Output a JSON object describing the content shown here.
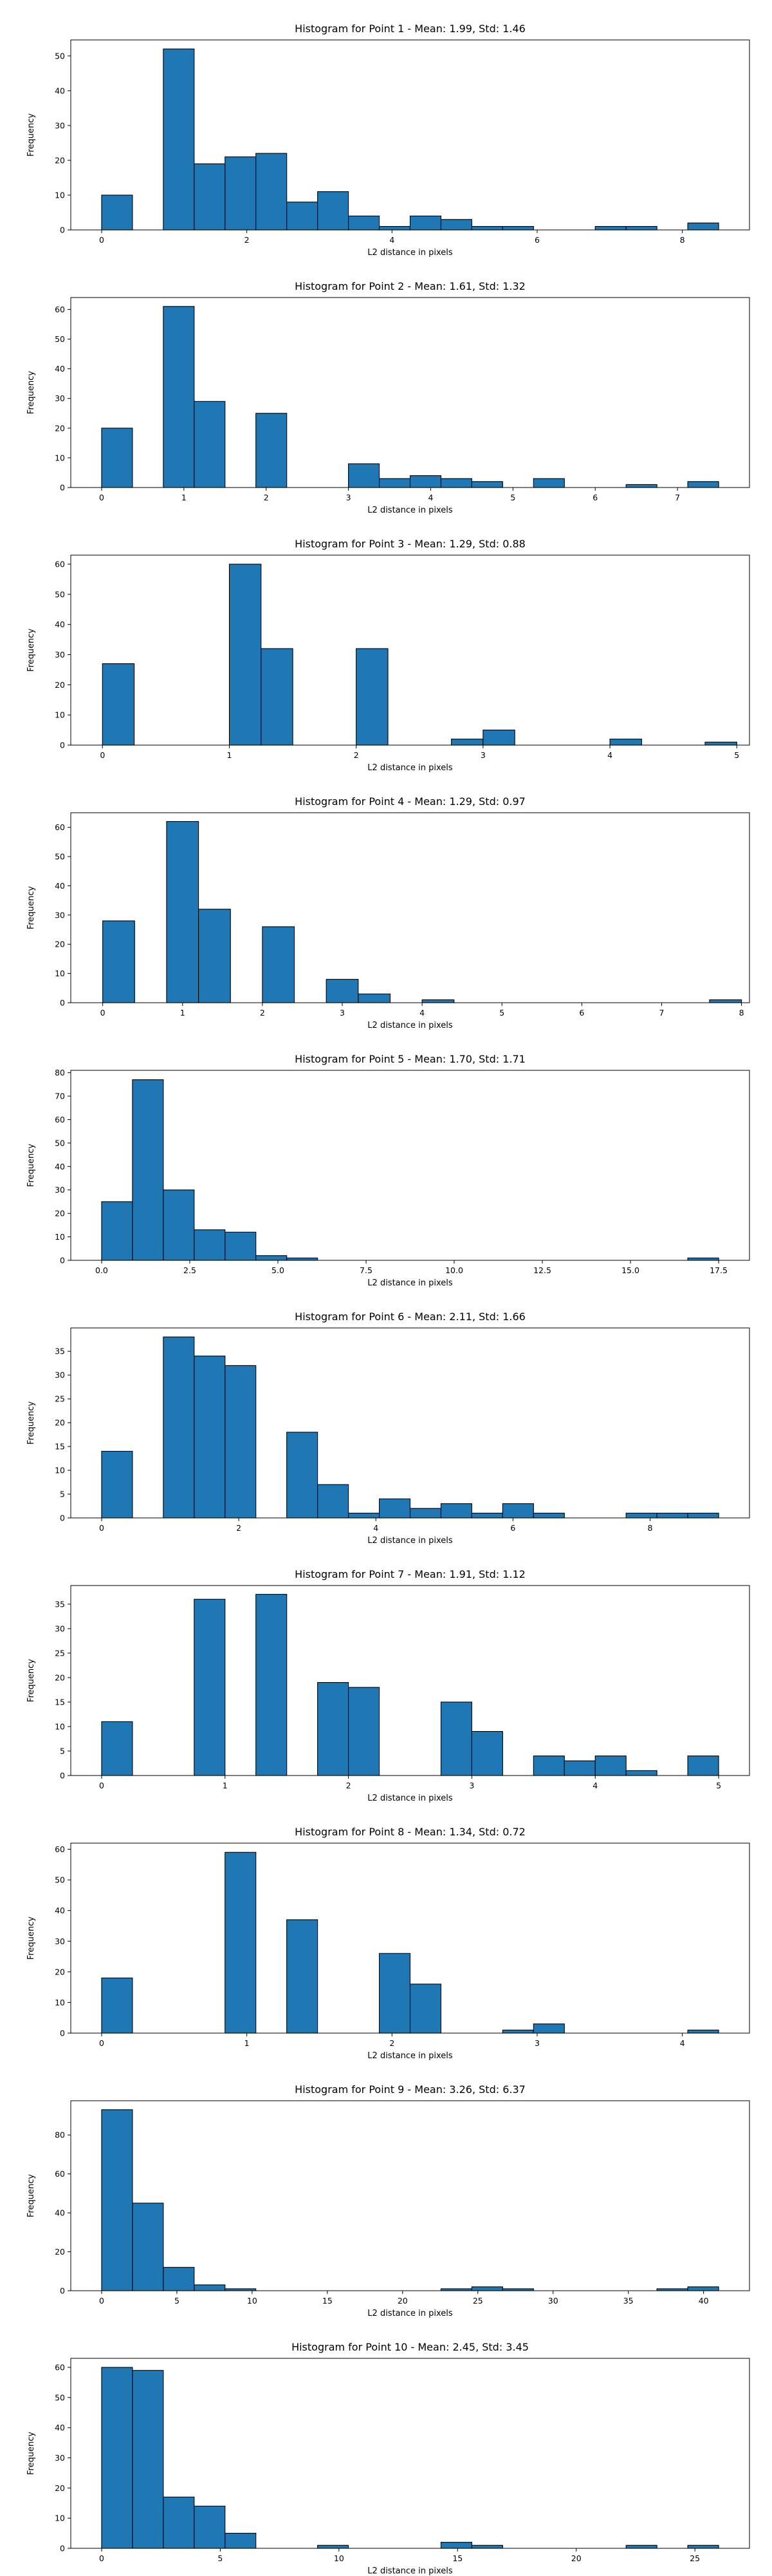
{
  "chart_data": [
    {
      "type": "bar",
      "title": "Histogram for Point 1 - Mean: 1.99, Std: 1.46",
      "xlabel": "L2 distance in pixels",
      "ylabel": "Frequency",
      "bin_edges": [
        0,
        0.425,
        0.85,
        1.275,
        1.7,
        2.125,
        2.55,
        2.975,
        3.4,
        3.825,
        4.25,
        4.675,
        5.1,
        5.525,
        5.95,
        6.375,
        6.8,
        7.225,
        7.65,
        8.075,
        8.5
      ],
      "counts": [
        10,
        0,
        52,
        19,
        21,
        22,
        8,
        11,
        4,
        1,
        4,
        3,
        1,
        1,
        0,
        0,
        1,
        1,
        0,
        2
      ],
      "xlim": [
        -0.425,
        8.925
      ],
      "ylim": [
        0,
        54.6
      ],
      "xticks": [
        0,
        2,
        4,
        6,
        8
      ],
      "yticks": [
        0,
        10,
        20,
        30,
        40,
        50
      ]
    },
    {
      "type": "bar",
      "title": "Histogram for Point 2 - Mean: 1.61, Std: 1.32",
      "xlabel": "L2 distance in pixels",
      "ylabel": "Frequency",
      "bin_edges": [
        0,
        0.375,
        0.75,
        1.125,
        1.5,
        1.875,
        2.25,
        2.625,
        3.0,
        3.375,
        3.75,
        4.125,
        4.5,
        4.875,
        5.25,
        5.625,
        6.0,
        6.375,
        6.75,
        7.125,
        7.5
      ],
      "counts": [
        20,
        0,
        61,
        29,
        0,
        25,
        0,
        0,
        8,
        3,
        4,
        3,
        2,
        0,
        3,
        0,
        0,
        1,
        0,
        2
      ],
      "xlim": [
        -0.375,
        7.875
      ],
      "ylim": [
        0,
        64
      ],
      "xticks": [
        0,
        1,
        2,
        3,
        4,
        5,
        6,
        7
      ],
      "yticks": [
        0,
        10,
        20,
        30,
        40,
        50,
        60
      ]
    },
    {
      "type": "bar",
      "title": "Histogram for Point 3 - Mean: 1.29, Std: 0.88",
      "xlabel": "L2 distance in pixels",
      "ylabel": "Frequency",
      "bin_edges": [
        0,
        0.25,
        0.5,
        0.75,
        1.0,
        1.25,
        1.5,
        1.75,
        2.0,
        2.25,
        2.5,
        2.75,
        3.0,
        3.25,
        3.5,
        3.75,
        4.0,
        4.25,
        4.5,
        4.75,
        5.0
      ],
      "counts": [
        27,
        0,
        0,
        0,
        60,
        32,
        0,
        0,
        32,
        0,
        0,
        2,
        5,
        0,
        0,
        0,
        2,
        0,
        0,
        1
      ],
      "xlim": [
        -0.25,
        5.1
      ],
      "ylim": [
        0,
        63
      ],
      "xticks": [
        0,
        1,
        2,
        3,
        4,
        5
      ],
      "yticks": [
        0,
        10,
        20,
        30,
        40,
        50,
        60
      ]
    },
    {
      "type": "bar",
      "title": "Histogram for Point 4 - Mean: 1.29, Std: 0.97",
      "xlabel": "L2 distance in pixels",
      "ylabel": "Frequency",
      "bin_edges": [
        0,
        0.4,
        0.8,
        1.2,
        1.6,
        2.0,
        2.4,
        2.8,
        3.2,
        3.6,
        4.0,
        4.4,
        4.8,
        5.2,
        5.6,
        6.0,
        6.4,
        6.8,
        7.2,
        7.6,
        8.0
      ],
      "counts": [
        28,
        0,
        62,
        32,
        0,
        26,
        0,
        8,
        3,
        0,
        1,
        0,
        0,
        0,
        0,
        0,
        0,
        0,
        0,
        1
      ],
      "xlim": [
        -0.4,
        8.1
      ],
      "ylim": [
        0,
        65
      ],
      "xticks": [
        0,
        1,
        2,
        3,
        4,
        5,
        6,
        7,
        8
      ],
      "yticks": [
        0,
        10,
        20,
        30,
        40,
        50,
        60
      ]
    },
    {
      "type": "bar",
      "title": "Histogram for Point 5 - Mean: 1.70, Std: 1.71",
      "xlabel": "L2 distance in pixels",
      "ylabel": "Frequency",
      "bin_edges": [
        0,
        0.875,
        1.75,
        2.625,
        3.5,
        4.375,
        5.25,
        6.125,
        7.0,
        7.875,
        8.75,
        9.625,
        10.5,
        11.375,
        12.25,
        13.125,
        14.0,
        14.875,
        15.75,
        16.625,
        17.5
      ],
      "counts": [
        25,
        77,
        30,
        13,
        12,
        2,
        1,
        0,
        0,
        0,
        0,
        0,
        0,
        0,
        0,
        0,
        0,
        0,
        0,
        1
      ],
      "xlim": [
        -0.875,
        18.375
      ],
      "ylim": [
        0,
        81
      ],
      "xticks": [
        0.0,
        2.5,
        5.0,
        7.5,
        10.0,
        12.5,
        15.0,
        17.5
      ],
      "xtick_labels": [
        "0.0",
        "2.5",
        "5.0",
        "7.5",
        "10.0",
        "12.5",
        "15.0",
        "17.5"
      ],
      "yticks": [
        0,
        10,
        20,
        30,
        40,
        50,
        60,
        70,
        80
      ]
    },
    {
      "type": "bar",
      "title": "Histogram for Point 6 - Mean: 2.11, Std: 1.66",
      "xlabel": "L2 distance in pixels",
      "ylabel": "Frequency",
      "bin_edges": [
        0,
        0.45,
        0.9,
        1.35,
        1.8,
        2.25,
        2.7,
        3.15,
        3.6,
        4.05,
        4.5,
        4.95,
        5.4,
        5.85,
        6.3,
        6.75,
        7.2,
        7.65,
        8.1,
        8.55,
        9.0
      ],
      "counts": [
        14,
        0,
        38,
        34,
        32,
        0,
        18,
        7,
        1,
        4,
        2,
        3,
        1,
        3,
        1,
        0,
        0,
        1,
        1,
        1
      ],
      "xlim": [
        -0.45,
        9.45
      ],
      "ylim": [
        0,
        39.9
      ],
      "xticks": [
        0,
        2,
        4,
        6,
        8
      ],
      "yticks": [
        0,
        5,
        10,
        15,
        20,
        25,
        30,
        35
      ]
    },
    {
      "type": "bar",
      "title": "Histogram for Point 7 - Mean: 1.91, Std: 1.12",
      "xlabel": "L2 distance in pixels",
      "ylabel": "Frequency",
      "bin_edges": [
        0,
        0.25,
        0.5,
        0.75,
        1.0,
        1.25,
        1.5,
        1.75,
        2.0,
        2.25,
        2.5,
        2.75,
        3.0,
        3.25,
        3.5,
        3.75,
        4.0,
        4.25,
        4.5,
        4.75,
        5.0
      ],
      "counts": [
        11,
        0,
        0,
        36,
        0,
        37,
        0,
        19,
        18,
        0,
        0,
        15,
        9,
        0,
        4,
        3,
        4,
        1,
        0,
        4
      ],
      "xlim": [
        -0.25,
        5.25
      ],
      "ylim": [
        0,
        38.8
      ],
      "xticks": [
        0,
        1,
        2,
        3,
        4,
        5
      ],
      "yticks": [
        0,
        5,
        10,
        15,
        20,
        25,
        30,
        35
      ]
    },
    {
      "type": "bar",
      "title": "Histogram for Point 8 - Mean: 1.34, Std: 0.72",
      "xlabel": "L2 distance in pixels",
      "ylabel": "Frequency",
      "bin_edges": [
        0,
        0.2125,
        0.425,
        0.6375,
        0.85,
        1.0625,
        1.275,
        1.4875,
        1.7,
        1.9125,
        2.125,
        2.3375,
        2.55,
        2.7625,
        2.975,
        3.1875,
        3.4,
        3.6125,
        3.825,
        4.0375,
        4.25
      ],
      "counts": [
        18,
        0,
        0,
        0,
        59,
        0,
        37,
        0,
        0,
        26,
        16,
        0,
        0,
        1,
        3,
        0,
        0,
        0,
        0,
        1
      ],
      "xlim": [
        -0.2125,
        4.4625
      ],
      "ylim": [
        0,
        62
      ],
      "xticks": [
        0,
        1,
        2,
        3,
        4
      ],
      "yticks": [
        0,
        10,
        20,
        30,
        40,
        50,
        60
      ]
    },
    {
      "type": "bar",
      "title": "Histogram for Point 9 - Mean: 3.26, Std: 6.37",
      "xlabel": "L2 distance in pixels",
      "ylabel": "Frequency",
      "bin_edges": [
        0,
        2.05,
        4.1,
        6.15,
        8.2,
        10.25,
        12.3,
        14.35,
        16.4,
        18.45,
        20.5,
        22.55,
        24.6,
        26.65,
        28.7,
        30.75,
        32.8,
        34.85,
        36.9,
        38.95,
        41.0
      ],
      "counts": [
        93,
        45,
        12,
        3,
        1,
        0,
        0,
        0,
        0,
        0,
        0,
        1,
        2,
        1,
        0,
        0,
        0,
        0,
        1,
        2
      ],
      "xlim": [
        -2.05,
        43.05
      ],
      "ylim": [
        0,
        97.6
      ],
      "xticks": [
        0,
        5,
        10,
        15,
        20,
        25,
        30,
        35,
        40
      ],
      "yticks": [
        0,
        20,
        40,
        60,
        80
      ]
    },
    {
      "type": "bar",
      "title": "Histogram for Point 10 - Mean: 2.45, Std: 3.45",
      "xlabel": "L2 distance in pixels",
      "ylabel": "Frequency",
      "bin_edges": [
        0,
        1.3,
        2.6,
        3.9,
        5.2,
        6.5,
        7.8,
        9.1,
        10.4,
        11.7,
        13.0,
        14.3,
        15.6,
        16.9,
        18.2,
        19.5,
        20.8,
        22.1,
        23.4,
        24.7,
        26.0
      ],
      "counts": [
        60,
        59,
        17,
        14,
        5,
        0,
        0,
        1,
        0,
        0,
        0,
        2,
        1,
        0,
        0,
        0,
        0,
        1,
        0,
        1
      ],
      "xlim": [
        -1.3,
        27.3
      ],
      "ylim": [
        0,
        63
      ],
      "xticks": [
        0,
        5,
        10,
        15,
        20,
        25
      ],
      "yticks": [
        0,
        10,
        20,
        30,
        40,
        50,
        60
      ]
    }
  ]
}
